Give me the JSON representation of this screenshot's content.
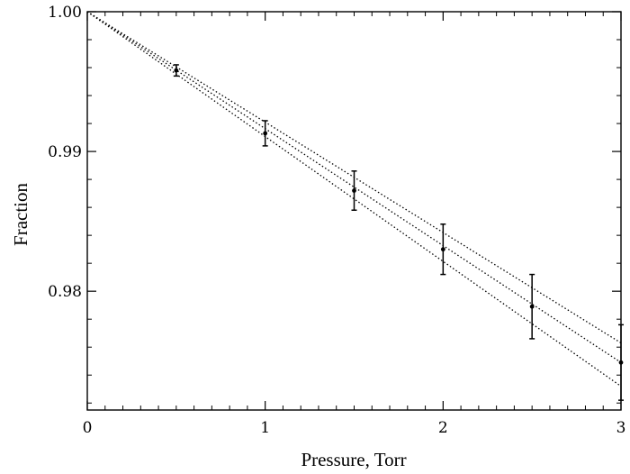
{
  "chart_data": {
    "type": "scatter",
    "title": "",
    "xlabel": "Pressure, Torr",
    "ylabel": "Fraction",
    "xlim": [
      0,
      3
    ],
    "ylim": [
      0.9715,
      1.0
    ],
    "xticks": [
      0,
      1,
      2,
      3
    ],
    "xtick_labels": [
      "0",
      "1",
      "2",
      "3"
    ],
    "yticks": [
      0.98,
      0.99,
      1.0
    ],
    "ytick_labels": [
      "0.98",
      "0.99",
      "1.00"
    ],
    "grid": false,
    "legend": "none",
    "series": [
      {
        "style": "points-with-error-bars",
        "points": [
          {
            "x": 0.5,
            "y": 0.9958,
            "err": 0.0004
          },
          {
            "x": 1.0,
            "y": 0.9913,
            "err": 0.0009
          },
          {
            "x": 1.5,
            "y": 0.9872,
            "err": 0.0014
          },
          {
            "x": 2.0,
            "y": 0.983,
            "err": 0.0018
          },
          {
            "x": 2.5,
            "y": 0.9789,
            "err": 0.0023
          },
          {
            "x": 3.0,
            "y": 0.9749,
            "err": 0.0027
          }
        ]
      },
      {
        "style": "dotted-line",
        "points": [
          {
            "x": 0,
            "y": 1.0
          },
          {
            "x": 3.0,
            "y": 0.9763
          }
        ]
      },
      {
        "style": "dotted-line",
        "points": [
          {
            "x": 0,
            "y": 1.0
          },
          {
            "x": 3.0,
            "y": 0.9749
          }
        ]
      },
      {
        "style": "dotted-line",
        "points": [
          {
            "x": 0,
            "y": 1.0
          },
          {
            "x": 3.0,
            "y": 0.9732
          }
        ]
      }
    ],
    "colors": {
      "ink": "#000000",
      "background": "#ffffff"
    }
  }
}
